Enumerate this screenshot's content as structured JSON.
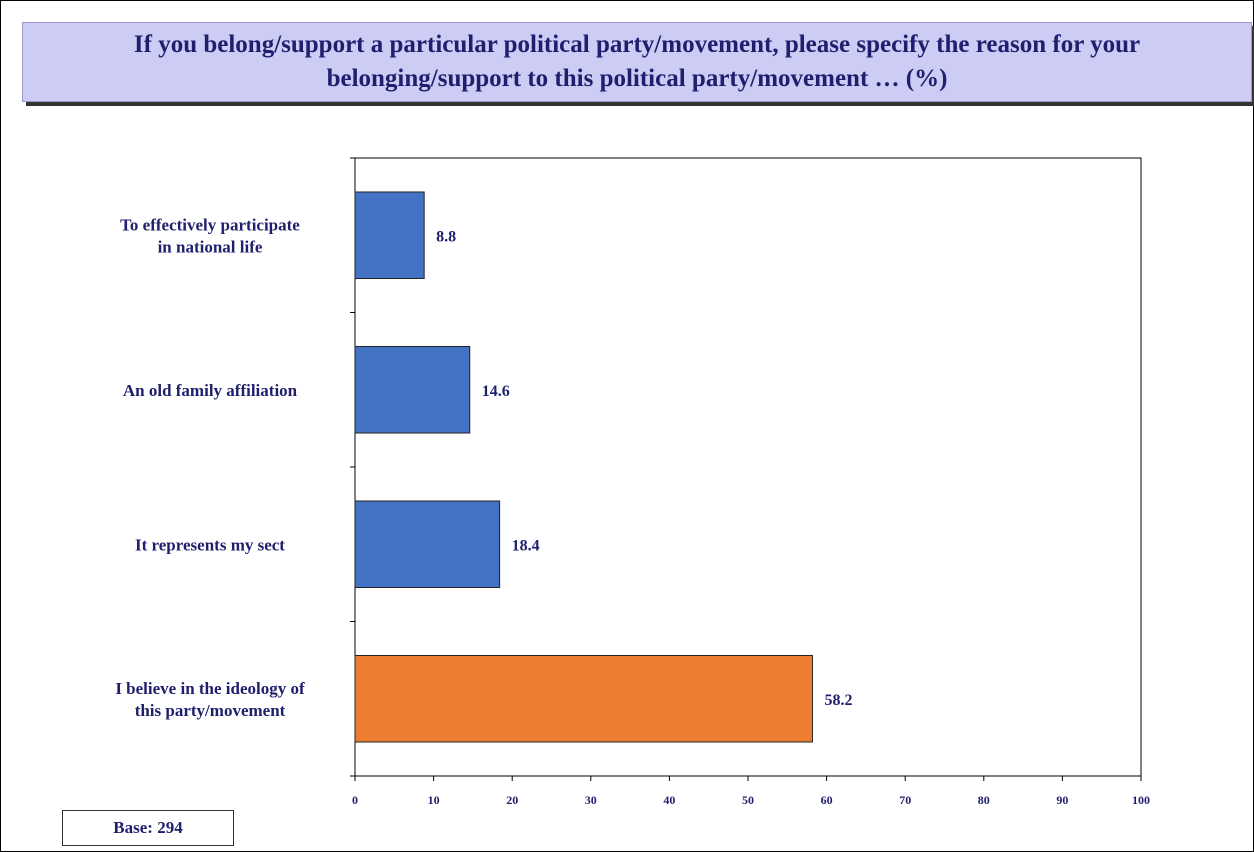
{
  "title": "If you belong/support a particular political party/movement, please specify the reason for your\nbelonging/support to this political party/movement … (%)",
  "base_label": "Base: 294",
  "colors": {
    "bar_default": "#4472c4",
    "bar_highlight": "#ed7d31",
    "text": "#1f1f6e",
    "title_bg": "#ccccf5"
  },
  "chart_data": {
    "type": "bar",
    "orientation": "horizontal",
    "title": "If you belong/support a particular political party/movement, please specify the reason for your belonging/support to this political party/movement … (%)",
    "categories": [
      "To effectively participate in national life",
      "An old family affiliation",
      "It represents my sect",
      "I believe in the ideology of this party/movement"
    ],
    "category_label_lines": [
      [
        "To effectively participate",
        "in national life"
      ],
      [
        "An old family affiliation"
      ],
      [
        "It represents my sect"
      ],
      [
        "I believe in the ideology of",
        "this party/movement"
      ]
    ],
    "values": [
      8.8,
      14.6,
      18.4,
      58.2
    ],
    "data_labels": [
      "8.8",
      "14.6",
      "18.4",
      "58.2"
    ],
    "highlight_index": 3,
    "xlim": [
      0,
      100
    ],
    "x_ticks": [
      0,
      10,
      20,
      30,
      40,
      50,
      60,
      70,
      80,
      90,
      100
    ],
    "xlabel": "",
    "ylabel": "",
    "grid": false,
    "legend": "none"
  }
}
